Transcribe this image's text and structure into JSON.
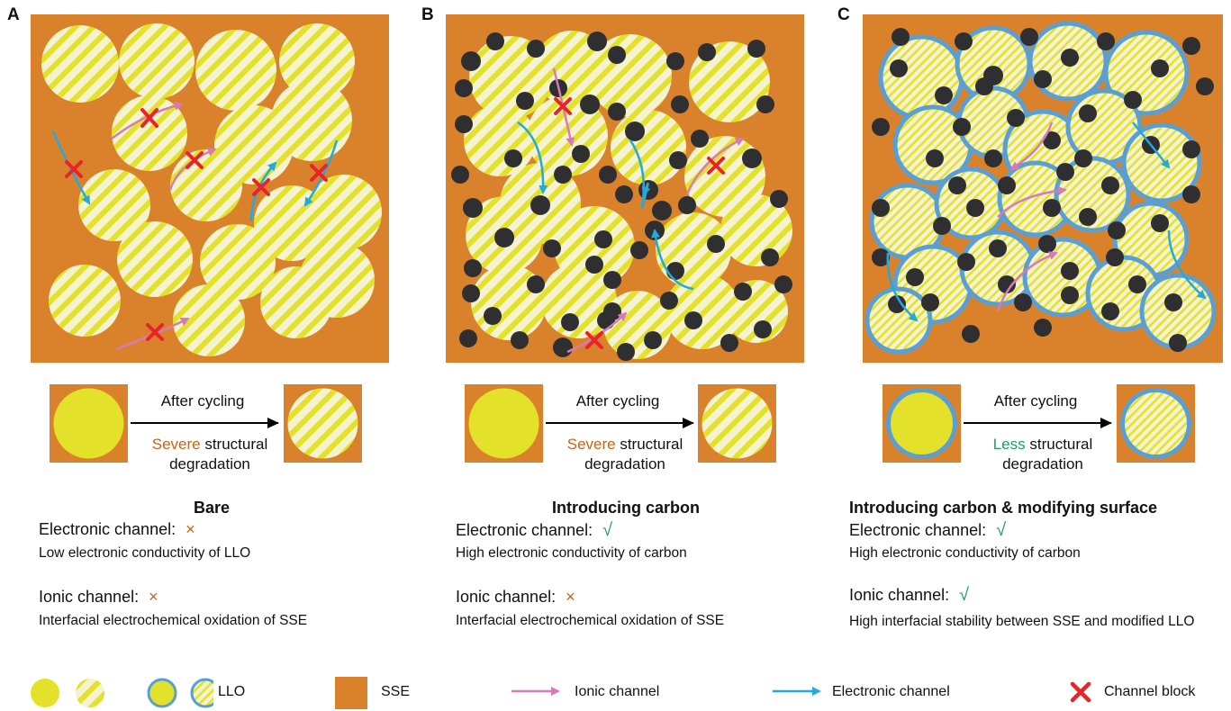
{
  "colors": {
    "sse": "#d9822b",
    "llo": "#e3e12a",
    "llo_light": "#f4f2cf",
    "coating": "#5a9fd4",
    "carbon": "#2f2f32",
    "ionic": "#d57bb8",
    "electronic": "#22aadd",
    "block": "#e8242a",
    "severe": "#c2651c",
    "less": "#1f9a73",
    "check": "#1f9a73",
    "cross": "#c2651c"
  },
  "panels": [
    {
      "letter": "A",
      "after_cycling": "After cycling",
      "degradation_key": "Severe",
      "degradation_rest": " structural",
      "degradation_line2": "degradation",
      "title": "Bare",
      "electronic_label": "Electronic channel:",
      "electronic_mark": "×",
      "electronic_desc": "Low electronic conductivity of LLO",
      "ionic_label": "Ionic channel:",
      "ionic_mark": "×",
      "ionic_desc": "Interfacial electrochemical oxidation of SSE"
    },
    {
      "letter": "B",
      "after_cycling": "After cycling",
      "degradation_key": "Severe",
      "degradation_rest": " structural",
      "degradation_line2": "degradation",
      "title": "Introducing carbon",
      "electronic_label": "Electronic channel:",
      "electronic_mark": "√",
      "electronic_desc": "High electronic conductivity of carbon",
      "ionic_label": "Ionic channel:",
      "ionic_mark": "×",
      "ionic_desc": "Interfacial electrochemical oxidation of SSE"
    },
    {
      "letter": "C",
      "after_cycling": "After cycling",
      "degradation_key": "Less",
      "degradation_rest": " structural",
      "degradation_line2": "degradation",
      "title": "Introducing carbon & modifying surface",
      "electronic_label": "Electronic channel:",
      "electronic_mark": "√",
      "electronic_desc": "High electronic conductivity of carbon",
      "ionic_label": "Ionic channel:",
      "ionic_mark": "√",
      "ionic_desc": "High interfacial stability between SSE and modified LLO"
    }
  ],
  "legend": {
    "llo": "LLO",
    "sse": "SSE",
    "ionic": "Ionic channel",
    "electronic": "Electronic channel",
    "block": "Channel block"
  }
}
